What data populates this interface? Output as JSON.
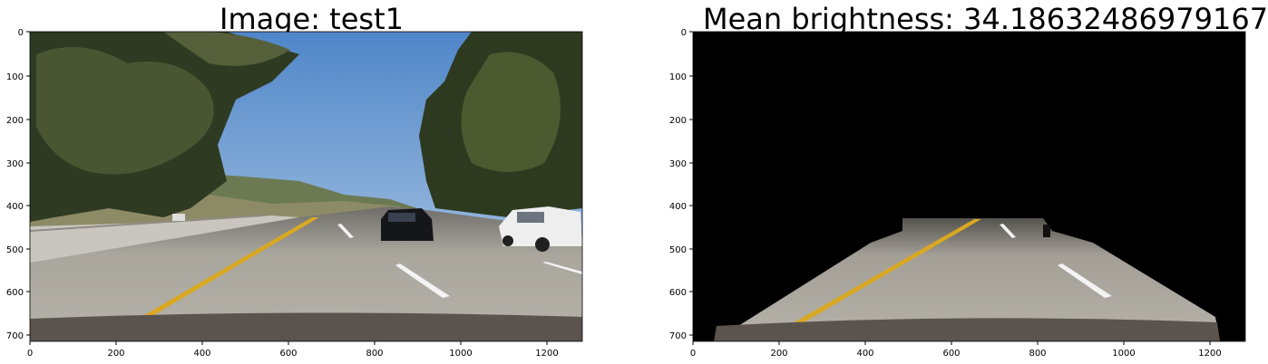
{
  "figures": [
    {
      "title": "Image: test1",
      "image_desc": "road-photo",
      "x_ticks": [
        "0",
        "200",
        "400",
        "600",
        "800",
        "1000",
        "1200"
      ],
      "y_ticks": [
        "0",
        "100",
        "200",
        "300",
        "400",
        "500",
        "600",
        "700"
      ]
    },
    {
      "title": "Mean brightness: 34.18632486979167",
      "image_desc": "masked-road-region",
      "x_ticks": [
        "0",
        "200",
        "400",
        "600",
        "800",
        "1000",
        "1200"
      ],
      "y_ticks": [
        "0",
        "100",
        "200",
        "300",
        "400",
        "500",
        "600",
        "700"
      ]
    }
  ],
  "axes": {
    "x_range": [
      0,
      1280
    ],
    "y_range": [
      0,
      720
    ]
  },
  "colors": {
    "sky": "#6f9fd4",
    "road": "#9a9891",
    "lane_yellow": "#e0b020",
    "lane_white": "#f2f2f2",
    "mask": "#000000"
  }
}
